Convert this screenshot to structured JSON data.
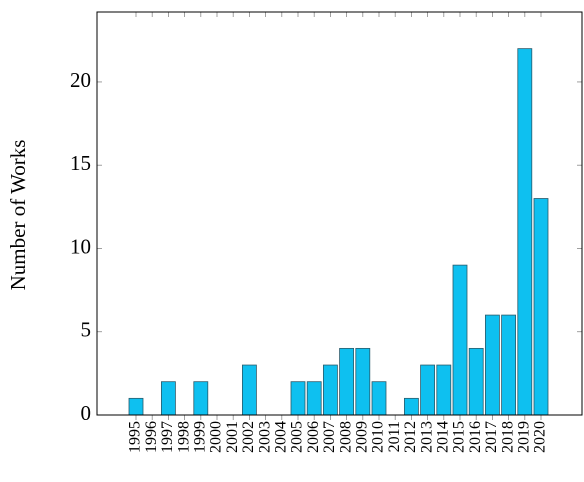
{
  "chart_data": {
    "type": "bar",
    "ylabel": "Number of Works",
    "categories": [
      "1995",
      "1996",
      "1997",
      "1998",
      "1999",
      "2000",
      "2001",
      "2002",
      "2003",
      "2004",
      "2005",
      "2006",
      "2007",
      "2008",
      "2009",
      "2010",
      "2011",
      "2012",
      "2013",
      "2014",
      "2015",
      "2016",
      "2017",
      "2018",
      "2019",
      "2020"
    ],
    "values": [
      1,
      0,
      2,
      0,
      2,
      0,
      0,
      3,
      0,
      0,
      2,
      2,
      3,
      4,
      4,
      2,
      0,
      1,
      3,
      3,
      9,
      4,
      6,
      6,
      22,
      13
    ],
    "color": "#0ec0f0",
    "ylim": [
      0,
      24.2
    ],
    "yticks": [
      0,
      5,
      10,
      15,
      20
    ]
  }
}
